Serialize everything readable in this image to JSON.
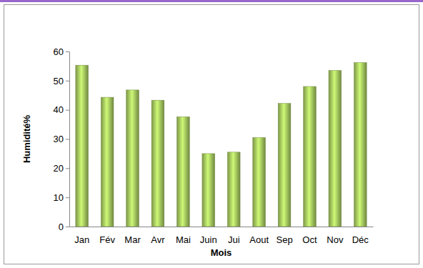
{
  "chart_data": {
    "type": "bar",
    "x_label": "Mois",
    "y_label": "Humidité%",
    "categories": [
      "Jan",
      "Fév",
      "Mar",
      "Avr",
      "Mai",
      "Juin",
      "Jui",
      "Aout",
      "Sep",
      "Oct",
      "Nov",
      "Déc"
    ],
    "values": [
      55.3,
      44.3,
      46.8,
      43.3,
      37.6,
      25.0,
      25.5,
      30.5,
      42.2,
      48.0,
      53.5,
      56.2
    ],
    "color": "#9bbb59",
    "ylim": [
      0,
      60
    ],
    "yticks": [
      0,
      10,
      20,
      30,
      40,
      50,
      60
    ],
    "grid": false
  }
}
